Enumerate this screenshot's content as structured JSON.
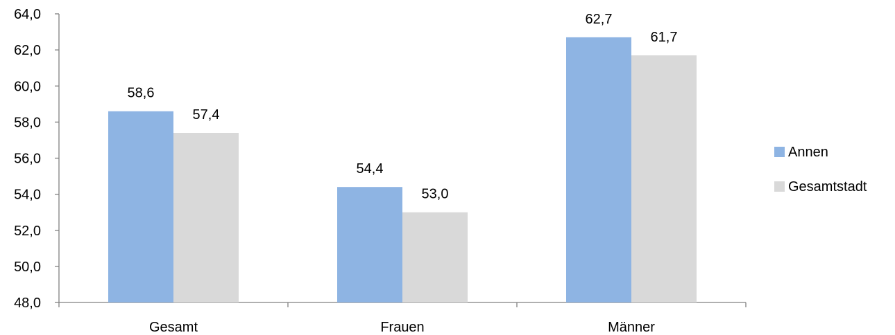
{
  "chart_data": {
    "type": "bar",
    "categories": [
      "Gesamt",
      "Frauen",
      "Männer"
    ],
    "series": [
      {
        "name": "Annen",
        "values": [
          58.6,
          54.4,
          62.7
        ],
        "labels": [
          "58,6",
          "54,4",
          "62,7"
        ],
        "color": "#8EB4E3"
      },
      {
        "name": "Gesamtstadt",
        "values": [
          57.4,
          53.0,
          61.7
        ],
        "labels": [
          "57,4",
          "53,0",
          "61,7"
        ],
        "color": "#D9D9D9"
      }
    ],
    "ylim": [
      48,
      64
    ],
    "yticks": [
      48,
      50,
      52,
      54,
      56,
      58,
      60,
      62,
      64
    ],
    "ytick_labels": [
      "48,0",
      "50,0",
      "52,0",
      "54,0",
      "56,0",
      "58,0",
      "60,0",
      "62,0",
      "64,0"
    ],
    "grid": false,
    "legend_position": "right",
    "axis_color": "#808080"
  }
}
